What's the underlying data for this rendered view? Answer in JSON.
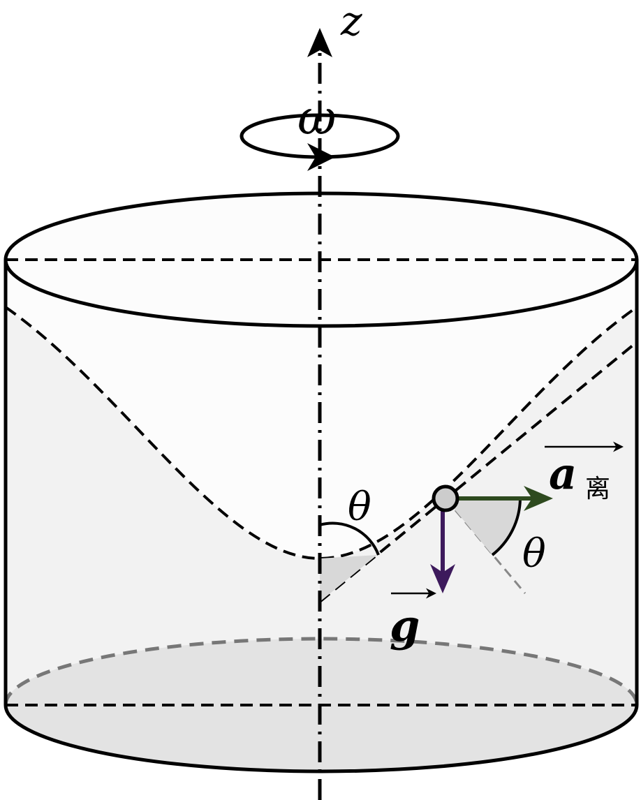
{
  "labels": {
    "axis": "z",
    "angular_velocity": "ω",
    "angle_top": "θ",
    "angle_right": "θ",
    "gravity": "g",
    "centrifugal_symbol": "a",
    "centrifugal_subscript": "离"
  },
  "colors": {
    "outline": "#000000",
    "cylinder_fill": "#f2f2f2",
    "paraboloid_fill": "#fcfcfc",
    "bottom_fill": "#e3e3e3",
    "angle_fill": "#dcdcdc",
    "gravity_arrow": "#3d1a5c",
    "centrifugal_arrow": "#2e4a1f",
    "dashed_gray": "#777777",
    "particle_fill": "#cccccc"
  },
  "icons": {
    "axis_arrow": "arrow-up-icon",
    "rotation": "rotation-arrow-icon",
    "vector_arrow": "vector-arrow-icon"
  }
}
